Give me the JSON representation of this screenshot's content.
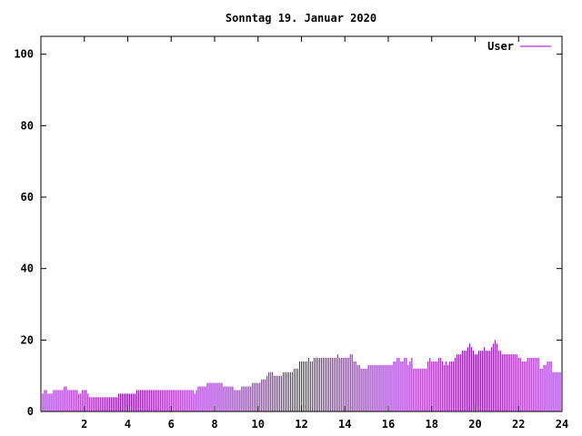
{
  "chart_data": {
    "type": "bar",
    "title": "Sonntag 19. Januar 2020",
    "xlabel": "",
    "ylabel": "",
    "xlim": [
      0,
      24
    ],
    "ylim": [
      0,
      105
    ],
    "x_ticks": [
      2,
      4,
      6,
      8,
      10,
      12,
      14,
      16,
      18,
      20,
      22,
      24
    ],
    "y_ticks": [
      0,
      20,
      40,
      60,
      80,
      100
    ],
    "grid": false,
    "legend_position": "top-right",
    "series": [
      {
        "name": "User",
        "color": "#9400d3",
        "bin_minutes": 5,
        "values": [
          5,
          5,
          6,
          6,
          5,
          5,
          5,
          6,
          6,
          6,
          6,
          6,
          6,
          7,
          7,
          6,
          6,
          6,
          6,
          6,
          6,
          5,
          5,
          6,
          6,
          6,
          5,
          4,
          4,
          4,
          4,
          4,
          4,
          4,
          4,
          4,
          4,
          4,
          4,
          4,
          4,
          4,
          4,
          5,
          5,
          5,
          5,
          5,
          5,
          5,
          5,
          5,
          5,
          6,
          6,
          6,
          6,
          6,
          6,
          6,
          6,
          6,
          6,
          6,
          6,
          6,
          6,
          6,
          6,
          6,
          6,
          6,
          6,
          6,
          6,
          6,
          6,
          6,
          6,
          6,
          6,
          6,
          6,
          6,
          6,
          5,
          6,
          7,
          7,
          7,
          7,
          7,
          8,
          8,
          8,
          8,
          8,
          8,
          8,
          8,
          8,
          7,
          7,
          7,
          7,
          7,
          7,
          6,
          6,
          6,
          6,
          7,
          7,
          7,
          7,
          7,
          7,
          8,
          8,
          8,
          8,
          8,
          9,
          9,
          9,
          10,
          11,
          11,
          11,
          10,
          10,
          10,
          10,
          10,
          11,
          11,
          11,
          11,
          11,
          11,
          12,
          12,
          12,
          14,
          14,
          14,
          14,
          14,
          15,
          14,
          14,
          15,
          15,
          15,
          15,
          15,
          15,
          15,
          15,
          15,
          15,
          15,
          15,
          15,
          16,
          15,
          15,
          15,
          15,
          15,
          15,
          16,
          16,
          14,
          14,
          13,
          13,
          12,
          12,
          12,
          12,
          13,
          13,
          13,
          13,
          13,
          13,
          13,
          13,
          13,
          13,
          13,
          13,
          13,
          13,
          14,
          14,
          15,
          15,
          14,
          14,
          15,
          15,
          13,
          14,
          15,
          12,
          12,
          12,
          12,
          12,
          12,
          12,
          12,
          14,
          15,
          14,
          14,
          14,
          14,
          15,
          15,
          14,
          13,
          14,
          13,
          14,
          14,
          14,
          15,
          16,
          16,
          16,
          17,
          17,
          17,
          18,
          19,
          18,
          17,
          16,
          16,
          17,
          17,
          17,
          18,
          17,
          17,
          17,
          18,
          19,
          20,
          19,
          17,
          17,
          16,
          16,
          16,
          16,
          16,
          16,
          16,
          16,
          16,
          15,
          15,
          14,
          14,
          14,
          15,
          15,
          15,
          15,
          15,
          15,
          15,
          12,
          12,
          13,
          13,
          14,
          14,
          14,
          11,
          11,
          11,
          11,
          11
        ]
      }
    ]
  }
}
